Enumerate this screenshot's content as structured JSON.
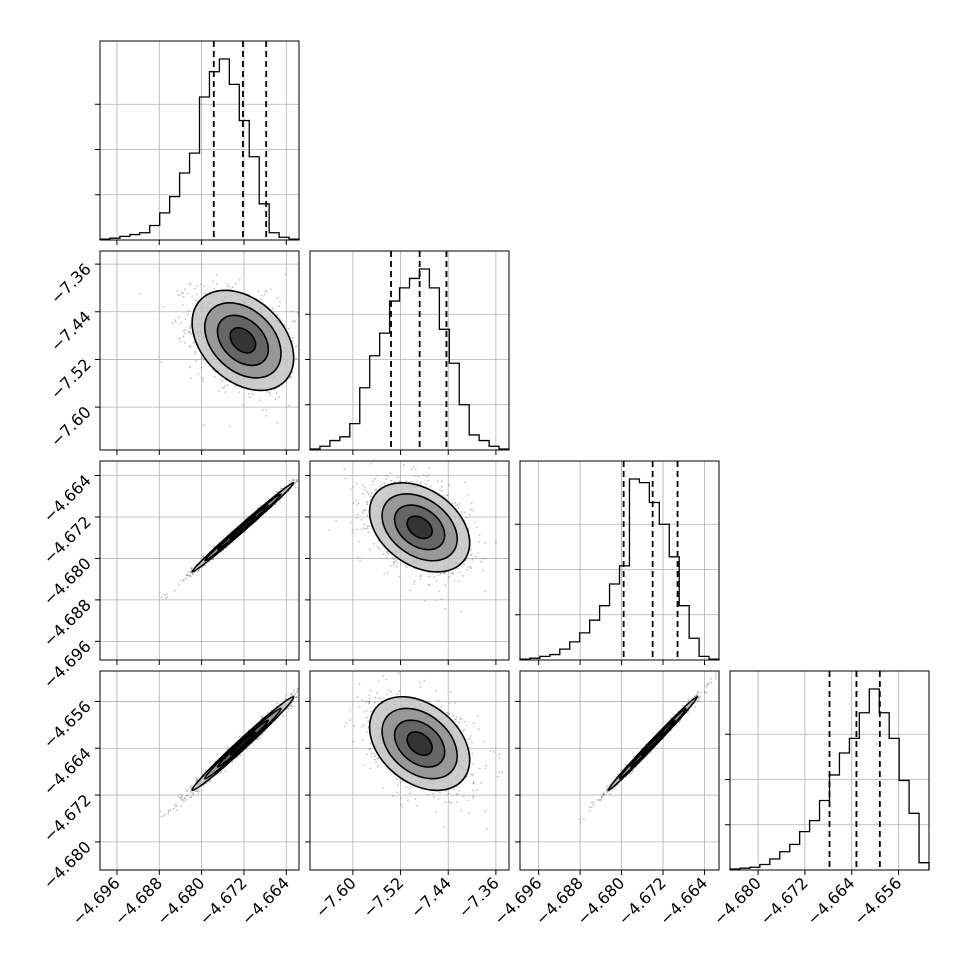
{
  "chart_data": {
    "type": "corner",
    "grid": true,
    "n_params": 4,
    "params": [
      {
        "range": [
          -4.6992,
          -4.6616
        ],
        "ticks": [
          "−4.696",
          "−4.688",
          "−4.680",
          "−4.672",
          "−4.664"
        ],
        "tick_values": [
          -4.696,
          -4.688,
          -4.68,
          -4.672,
          -4.664
        ],
        "quantiles": [
          -4.6777,
          -4.6722,
          -4.6678
        ],
        "hist_edges_start": -4.6992,
        "hist_bin_width": 0.00188,
        "hist": [
          0.5,
          1,
          2,
          3,
          4,
          8,
          15,
          24,
          37,
          48,
          79,
          93,
          100,
          86,
          66,
          46,
          20,
          4,
          1.5,
          0.5
        ]
      },
      {
        "range": [
          -7.672,
          -7.338
        ],
        "ticks": [
          "−7.60",
          "−7.52",
          "−7.44",
          "−7.36"
        ],
        "tick_values": [
          -7.6,
          -7.52,
          -7.44,
          -7.36
        ],
        "quantiles": [
          -7.536,
          -7.488,
          -7.443
        ],
        "hist_edges_start": -7.672,
        "hist_bin_width": 0.0167,
        "hist": [
          0.5,
          2,
          5,
          7,
          14,
          33,
          50,
          62,
          79,
          86,
          91,
          96,
          86,
          64,
          46,
          24,
          8,
          5,
          2,
          0.5
        ]
      },
      {
        "range": [
          -4.6996,
          -4.6612
        ],
        "ticks": [
          "−4.696",
          "−4.688",
          "−4.680",
          "−4.672",
          "−4.664"
        ],
        "tick_values": [
          -4.696,
          -4.688,
          -4.68,
          -4.672,
          -4.664
        ],
        "quantiles": [
          -4.6796,
          -4.674,
          -4.6692
        ],
        "hist_edges_start": -4.6996,
        "hist_bin_width": 0.00192,
        "hist": [
          0.5,
          1,
          2,
          3,
          6,
          10,
          15,
          22,
          30,
          42,
          52,
          100,
          98,
          87,
          75,
          57,
          30,
          12,
          2,
          0.5
        ]
      },
      {
        "range": [
          -4.6848,
          -4.6508
        ],
        "ticks": [
          "−4.680",
          "−4.672",
          "−4.664",
          "−4.656"
        ],
        "tick_values": [
          -4.68,
          -4.672,
          -4.664,
          -4.656
        ],
        "quantiles": [
          -4.6678,
          -4.6632,
          -4.6592
        ],
        "hist_edges_start": -4.6848,
        "hist_bin_width": 0.0017,
        "hist": [
          0.5,
          1,
          1.5,
          3,
          6,
          10,
          14,
          21,
          27,
          38,
          52,
          64,
          72,
          86,
          99,
          86,
          72,
          49,
          31,
          4
        ]
      }
    ],
    "pairs": [
      {
        "row": 1,
        "col": 0,
        "mean": [
          -4.6722,
          -7.488
        ],
        "sd": [
          0.0048,
          0.042
        ],
        "corr": -0.35
      },
      {
        "row": 2,
        "col": 0,
        "mean": [
          -4.6722,
          -4.674
        ],
        "sd": [
          0.0048,
          0.0043
        ],
        "corr": 0.995
      },
      {
        "row": 2,
        "col": 1,
        "mean": [
          -7.488,
          -4.674
        ],
        "sd": [
          0.042,
          0.0043
        ],
        "corr": -0.35
      },
      {
        "row": 3,
        "col": 0,
        "mean": [
          -4.6722,
          -4.6632
        ],
        "sd": [
          0.0048,
          0.004
        ],
        "corr": 0.99
      },
      {
        "row": 3,
        "col": 1,
        "mean": [
          -7.488,
          -4.6632
        ],
        "sd": [
          0.042,
          0.004
        ],
        "corr": -0.35
      },
      {
        "row": 3,
        "col": 2,
        "mean": [
          -4.674,
          -4.6632
        ],
        "sd": [
          0.0043,
          0.004
        ],
        "corr": 0.995
      }
    ],
    "contour_levels_sigma": [
      0.5,
      1.0,
      1.5,
      2.0
    ],
    "contour_colors": [
      "#2b2b2b",
      "#5c5c5c",
      "#8f8f8f",
      "#c4c4c4"
    ],
    "scatter_color": "#777777",
    "line_color": "#000000",
    "grid_color": "#b0b0b0"
  }
}
